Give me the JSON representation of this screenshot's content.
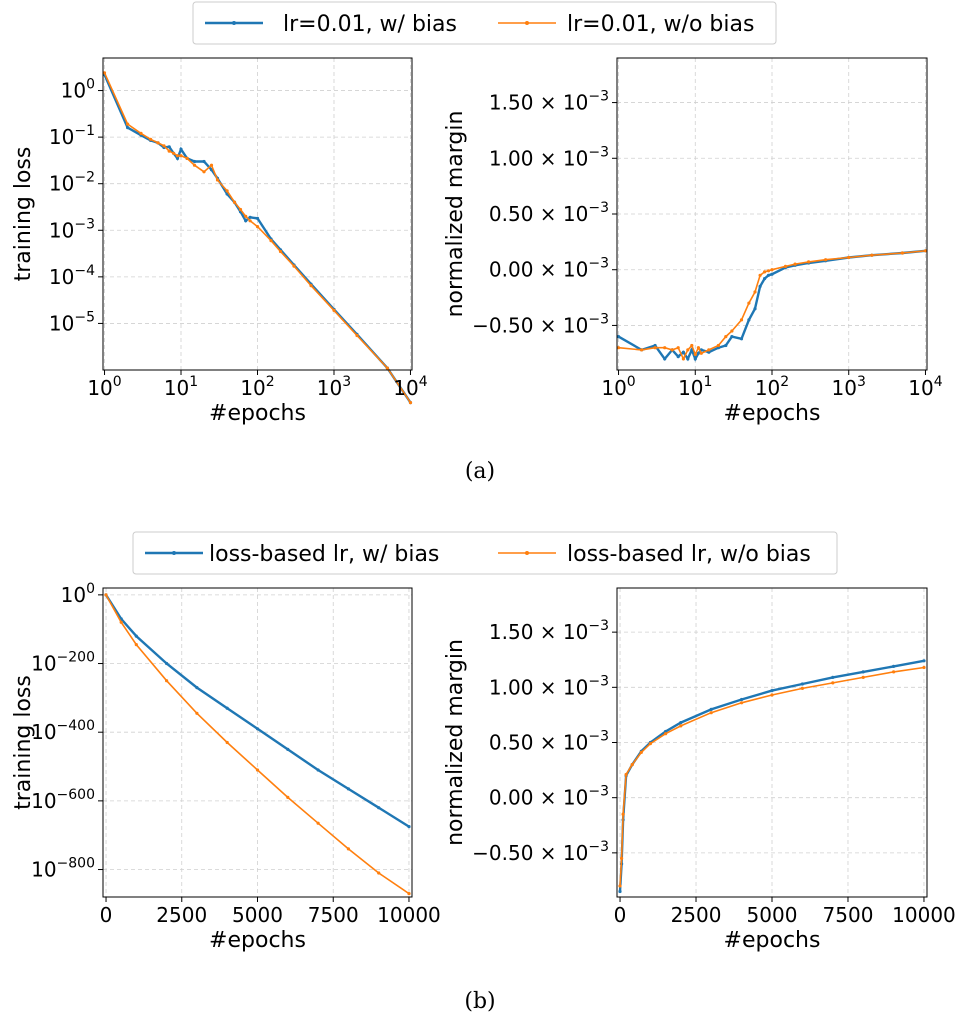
{
  "colors": {
    "blue": "#1f77b4",
    "orange": "#ff7f0e"
  },
  "captions": [
    "(a)",
    "(b)"
  ],
  "chart_data": [
    {
      "type": "line",
      "group": "a",
      "xlabel": "#epochs",
      "ylabel": "training loss",
      "xscale": "log",
      "yscale": "log",
      "xlim": [
        1,
        10000
      ],
      "ylim": [
        1e-06,
        5
      ],
      "xticks": [
        "10^0",
        "10^1",
        "10^2",
        "10^3",
        "10^4"
      ],
      "yticks": [
        "10^-5",
        "10^-4",
        "10^-3",
        "10^-2",
        "10^-1",
        "10^0"
      ],
      "grid": true,
      "series": [
        {
          "name": "lr=0.01, w/ bias",
          "x": [
            1,
            2,
            3,
            4,
            5,
            6,
            7,
            8,
            9,
            10,
            12,
            15,
            20,
            25,
            30,
            40,
            50,
            60,
            70,
            80,
            100,
            150,
            200,
            300,
            500,
            1000,
            2000,
            5000,
            10000
          ],
          "y": [
            2.2,
            0.16,
            0.11,
            0.085,
            0.075,
            0.06,
            0.062,
            0.045,
            0.035,
            0.055,
            0.035,
            0.03,
            0.03,
            0.02,
            0.013,
            0.006,
            0.004,
            0.0025,
            0.0016,
            0.0019,
            0.0018,
            0.00065,
            0.00038,
            0.00018,
            7e-05,
            2e-05,
            5.8e-06,
            1.1e-06,
            2e-07
          ]
        },
        {
          "name": "lr=0.01, w/o bias",
          "x": [
            1,
            2,
            3,
            4,
            5,
            6,
            7,
            8,
            9,
            10,
            12,
            15,
            20,
            25,
            30,
            40,
            50,
            60,
            70,
            80,
            100,
            150,
            200,
            300,
            500,
            1000,
            2000,
            5000,
            10000
          ],
          "y": [
            2.4,
            0.19,
            0.12,
            0.09,
            0.075,
            0.065,
            0.05,
            0.045,
            0.04,
            0.04,
            0.035,
            0.025,
            0.018,
            0.025,
            0.012,
            0.007,
            0.004,
            0.0028,
            0.002,
            0.0016,
            0.0012,
            0.0006,
            0.00035,
            0.00017,
            6.5e-05,
            1.9e-05,
            5.5e-06,
            1.1e-06,
            2e-07
          ]
        }
      ]
    },
    {
      "type": "line",
      "group": "a",
      "xlabel": "#epochs",
      "ylabel": "normalized margin",
      "xscale": "log",
      "yscale": "linear",
      "xlim": [
        1,
        10000
      ],
      "ylim": [
        -0.9,
        1.9
      ],
      "ytick_unit": "× 10^-3",
      "xticks": [
        "10^0",
        "10^1",
        "10^2",
        "10^3",
        "10^4"
      ],
      "yticks": [
        "-0.50",
        "0.00",
        "0.50",
        "1.00",
        "1.50"
      ],
      "grid": true,
      "series": [
        {
          "name": "lr=0.01, w/ bias",
          "x": [
            1,
            2,
            3,
            4,
            5,
            6,
            7,
            8,
            9,
            10,
            11,
            12,
            15,
            20,
            25,
            30,
            40,
            50,
            60,
            70,
            80,
            90,
            100,
            150,
            200,
            300,
            500,
            1000,
            2000,
            5000,
            10000
          ],
          "y": [
            -0.6,
            -0.72,
            -0.68,
            -0.8,
            -0.72,
            -0.78,
            -0.74,
            -0.8,
            -0.72,
            -0.8,
            -0.75,
            -0.72,
            -0.74,
            -0.7,
            -0.68,
            -0.6,
            -0.62,
            -0.45,
            -0.35,
            -0.15,
            -0.08,
            -0.05,
            -0.04,
            0.02,
            0.04,
            0.06,
            0.08,
            0.11,
            0.13,
            0.15,
            0.17
          ]
        },
        {
          "name": "lr=0.01, w/o bias",
          "x": [
            1,
            2,
            3,
            4,
            5,
            6,
            7,
            8,
            9,
            10,
            11,
            12,
            15,
            20,
            25,
            30,
            40,
            50,
            60,
            70,
            80,
            90,
            100,
            150,
            200,
            300,
            500,
            1000,
            2000,
            5000,
            10000
          ],
          "y": [
            -0.7,
            -0.72,
            -0.7,
            -0.7,
            -0.72,
            -0.7,
            -0.8,
            -0.72,
            -0.68,
            -0.76,
            -0.7,
            -0.75,
            -0.72,
            -0.68,
            -0.6,
            -0.55,
            -0.45,
            -0.3,
            -0.2,
            -0.05,
            -0.02,
            -0.01,
            0.0,
            0.03,
            0.05,
            0.07,
            0.09,
            0.11,
            0.13,
            0.15,
            0.17
          ]
        }
      ]
    },
    {
      "type": "line",
      "group": "b",
      "xlabel": "#epochs",
      "ylabel": "training loss",
      "xscale": "linear",
      "yscale": "log",
      "xlim": [
        -100,
        10100
      ],
      "ylim_exponent": [
        -880,
        20
      ],
      "xticks": [
        "0",
        "2500",
        "5000",
        "7500",
        "10000"
      ],
      "yticks": [
        "10^-800",
        "10^-600",
        "10^-400",
        "10^-200",
        "10^0"
      ],
      "grid": true,
      "series": [
        {
          "name": "loss-based lr, w/ bias",
          "x": [
            0,
            500,
            1000,
            2000,
            3000,
            4000,
            5000,
            6000,
            7000,
            8000,
            9000,
            10000
          ],
          "log10_y": [
            0,
            -70,
            -120,
            -200,
            -270,
            -330,
            -390,
            -450,
            -510,
            -565,
            -620,
            -675
          ]
        },
        {
          "name": "loss-based lr, w/o bias",
          "x": [
            0,
            500,
            1000,
            2000,
            3000,
            4000,
            5000,
            6000,
            7000,
            8000,
            9000,
            10000
          ],
          "log10_y": [
            0,
            -80,
            -145,
            -250,
            -345,
            -430,
            -510,
            -590,
            -665,
            -740,
            -810,
            -870
          ]
        }
      ]
    },
    {
      "type": "line",
      "group": "b",
      "xlabel": "#epochs",
      "ylabel": "normalized margin",
      "xscale": "linear",
      "yscale": "linear",
      "xlim": [
        -100,
        10100
      ],
      "ylim": [
        -0.9,
        1.9
      ],
      "ytick_unit": "× 10^-3",
      "xticks": [
        "0",
        "2500",
        "5000",
        "7500",
        "10000"
      ],
      "yticks": [
        "-0.50",
        "0.00",
        "0.50",
        "1.00",
        "1.50"
      ],
      "grid": true,
      "series": [
        {
          "name": "loss-based lr, w/ bias",
          "x": [
            0,
            50,
            100,
            200,
            400,
            700,
            1000,
            1500,
            2000,
            3000,
            4000,
            5000,
            6000,
            7000,
            8000,
            9000,
            10000
          ],
          "y": [
            -0.85,
            -0.6,
            -0.2,
            0.2,
            0.3,
            0.42,
            0.5,
            0.6,
            0.68,
            0.8,
            0.89,
            0.97,
            1.03,
            1.09,
            1.14,
            1.19,
            1.24
          ]
        },
        {
          "name": "loss-based lr, w/o bias",
          "x": [
            0,
            50,
            100,
            200,
            400,
            700,
            1000,
            1500,
            2000,
            3000,
            4000,
            5000,
            6000,
            7000,
            8000,
            9000,
            10000
          ],
          "y": [
            -0.8,
            -0.55,
            -0.15,
            0.21,
            0.3,
            0.41,
            0.49,
            0.58,
            0.65,
            0.77,
            0.86,
            0.93,
            0.99,
            1.04,
            1.09,
            1.14,
            1.18
          ]
        }
      ]
    }
  ],
  "legends": [
    {
      "group": "a",
      "entries": [
        "lr=0.01, w/ bias",
        "lr=0.01, w/o bias"
      ]
    },
    {
      "group": "b",
      "entries": [
        "loss-based lr, w/ bias",
        "loss-based lr, w/o bias"
      ]
    }
  ]
}
